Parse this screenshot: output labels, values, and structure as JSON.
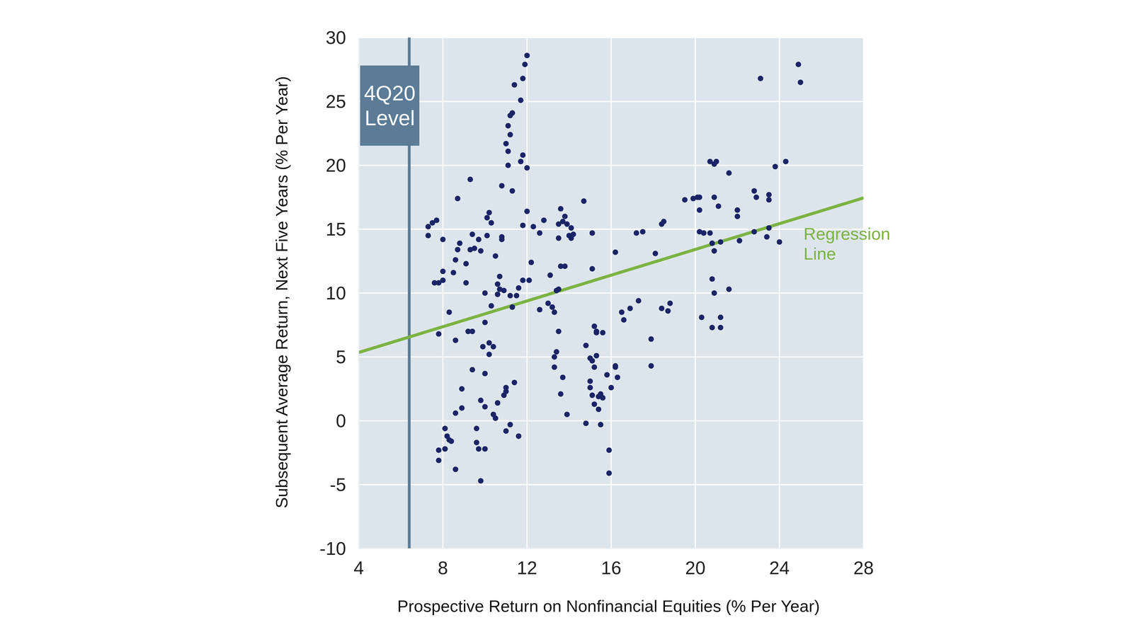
{
  "chart_data": {
    "type": "scatter",
    "x_label": "Prospective Return on Nonfinancial Equities (% Per Year)",
    "y_label": "Subsequent Average Return, Next Five Years (% Per Year)",
    "color": "#1b2466",
    "marker": "circle",
    "grid": true,
    "xlim": [
      4,
      28
    ],
    "xticks": [
      4,
      8,
      12,
      16,
      20,
      24,
      28
    ],
    "ylim": [
      -10,
      30
    ],
    "yticks": [
      -10,
      -5,
      0,
      5,
      10,
      15,
      20,
      25,
      30
    ],
    "x": [
      7.3,
      7.3,
      7.5,
      7.7,
      7.6,
      7.8,
      8.0,
      8.0,
      8.0,
      7.8,
      7.8,
      7.8,
      8.1,
      8.1,
      8.2,
      8.3,
      8.4,
      8.3,
      8.5,
      8.6,
      8.6,
      8.7,
      8.7,
      8.8,
      8.6,
      8.6,
      8.9,
      8.9,
      9.1,
      9.1,
      9.2,
      9.3,
      9.3,
      9.4,
      9.4,
      9.5,
      9.4,
      9.6,
      9.6,
      9.7,
      9.7,
      9.8,
      9.8,
      9.8,
      10.0,
      9.9,
      10.0,
      10.0,
      10.0,
      10.0,
      10.1,
      10.1,
      10.2,
      10.2,
      10.2,
      10.3,
      10.3,
      10.4,
      10.4,
      10.5,
      10.5,
      10.6,
      10.6,
      10.7,
      10.7,
      10.6,
      10.8,
      10.8,
      10.8,
      10.9,
      10.9,
      11.0,
      11.0,
      11.0,
      11.0,
      11.1,
      11.1,
      11.1,
      11.2,
      11.2,
      11.3,
      11.3,
      11.2,
      11.3,
      11.2,
      11.4,
      11.4,
      11.5,
      11.6,
      11.7,
      11.7,
      11.8,
      11.8,
      11.8,
      11.9,
      12.0,
      11.6,
      11.8,
      12.0,
      12.0,
      12.1,
      12.2,
      12.3,
      12.6,
      12.6,
      12.8,
      13.0,
      13.1,
      13.2,
      13.3,
      13.3,
      13.3,
      13.4,
      13.5,
      13.4,
      13.5,
      13.6,
      13.7,
      13.5,
      13.5,
      13.6,
      13.6,
      13.7,
      13.8,
      13.8,
      13.9,
      13.9,
      14.0,
      14.1,
      14.1,
      14.2,
      14.7,
      14.8,
      14.8,
      15.0,
      15.0,
      15.0,
      15.1,
      15.1,
      15.1,
      15.1,
      15.2,
      15.2,
      15.3,
      15.2,
      15.3,
      15.3,
      15.4,
      15.4,
      15.5,
      15.5,
      15.6,
      15.6,
      15.8,
      15.9,
      15.9,
      16.0,
      16.2,
      16.2,
      16.2,
      16.3,
      16.5,
      16.6,
      16.9,
      17.2,
      17.3,
      17.5,
      17.9,
      17.9,
      18.1,
      18.4,
      18.5,
      18.4,
      18.7,
      18.8,
      19.5,
      19.9,
      20.1,
      20.2,
      20.2,
      20.3,
      20.4,
      20.2,
      20.7,
      20.8,
      20.7,
      20.8,
      20.9,
      20.9,
      20.9,
      20.8,
      20.9,
      21.0,
      21.1,
      21.2,
      21.2,
      21.2,
      21.6,
      21.6,
      22.0,
      22.0,
      22.1,
      22.8,
      22.9,
      22.8,
      23.1,
      23.4,
      23.5,
      23.5,
      23.5,
      23.8,
      24.0,
      24.3,
      24.9,
      25.0
    ],
    "values": [
      15.2,
      14.5,
      15.5,
      15.7,
      10.8,
      10.8,
      11.0,
      11.7,
      14.2,
      6.8,
      -2.3,
      -3.1,
      -2.2,
      -0.6,
      -1.2,
      -1.5,
      -1.6,
      8.5,
      11.6,
      6.3,
      12.6,
      13.4,
      17.4,
      13.9,
      0.6,
      -3.8,
      2.5,
      1.0,
      12.3,
      10.8,
      7.0,
      13.4,
      18.9,
      14.6,
      4.0,
      13.5,
      7.0,
      -0.6,
      -1.7,
      -2.2,
      14.2,
      13.3,
      1.6,
      -4.7,
      -2.2,
      5.8,
      3.7,
      1.1,
      7.7,
      10.0,
      14.5,
      15.9,
      16.3,
      6.1,
      5.2,
      15.5,
      9.0,
      0.5,
      5.8,
      12.9,
      0.2,
      10.7,
      9.9,
      11.3,
      10.3,
      1.4,
      14.4,
      14.2,
      18.4,
      10.2,
      2.0,
      2.6,
      2.3,
      -0.8,
      21.7,
      21.1,
      20.0,
      23.1,
      22.4,
      23.9,
      24.1,
      18.0,
      9.8,
      8.9,
      -0.3,
      26.3,
      3.0,
      9.8,
      10.4,
      25.1,
      20.3,
      20.8,
      15.3,
      26.8,
      27.9,
      28.6,
      -1.2,
      11.0,
      19.8,
      16.4,
      11.0,
      12.4,
      15.2,
      8.7,
      14.7,
      15.7,
      9.2,
      11.4,
      8.9,
      8.5,
      5.0,
      4.2,
      10.2,
      10.3,
      5.4,
      7.0,
      2.1,
      3.4,
      14.3,
      15.4,
      16.6,
      12.1,
      15.6,
      12.1,
      16.0,
      15.4,
      0.5,
      14.5,
      15.1,
      14.3,
      14.6,
      17.2,
      -0.2,
      5.9,
      4.9,
      3.1,
      2.6,
      4.7,
      14.7,
      11.9,
      2.0,
      7.4,
      4.2,
      6.9,
      1.3,
      5.1,
      7.0,
      1.9,
      0.9,
      -0.3,
      2.1,
      6.9,
      1.8,
      3.6,
      -2.3,
      -4.1,
      2.6,
      4.3,
      4.2,
      13.2,
      3.4,
      8.5,
      7.9,
      8.8,
      14.7,
      9.4,
      14.8,
      4.3,
      6.4,
      13.1,
      15.4,
      15.6,
      8.8,
      8.6,
      9.2,
      17.3,
      17.4,
      17.5,
      16.5,
      14.8,
      8.1,
      14.7,
      17.5,
      14.7,
      11.1,
      20.3,
      7.3,
      20.1,
      10.0,
      13.3,
      13.9,
      17.5,
      20.3,
      16.8,
      8.1,
      7.3,
      14.0,
      19.4,
      10.3,
      16.5,
      16.0,
      14.1,
      18.0,
      17.5,
      14.8,
      26.8,
      14.4,
      17.7,
      17.3,
      15.1,
      19.9,
      14.0,
      20.3,
      27.9,
      26.5
    ],
    "regression_line": {
      "label": "Regression Line",
      "x": [
        4,
        28
      ],
      "values": [
        5.35,
        17.45
      ],
      "color": "#7cb342"
    },
    "reference_line": {
      "label": "4Q20 Level",
      "x": 6.4,
      "color": "#5b7b96"
    }
  }
}
